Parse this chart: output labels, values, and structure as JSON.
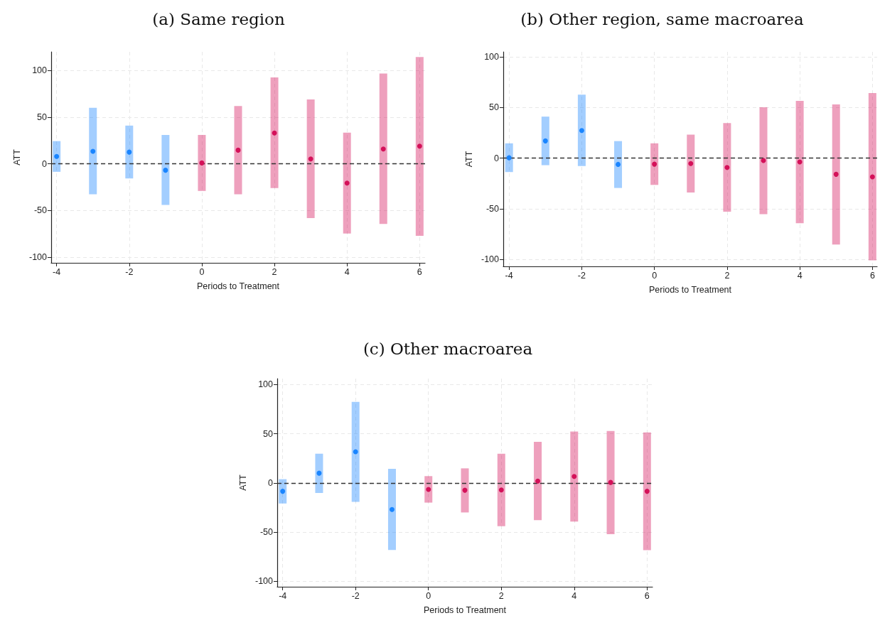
{
  "chart_data": [
    {
      "type": "scatter",
      "title": "(a) Same region",
      "xlabel": "Periods to Treatment",
      "ylabel": "ATT",
      "xlim": [
        -4.15,
        6.15
      ],
      "xticks": [
        -4,
        -2,
        0,
        2,
        4,
        6
      ],
      "ylim": [
        -106,
        120
      ],
      "yticks": [
        -100,
        -50,
        0,
        50,
        100
      ],
      "grid": true,
      "marker": "circle",
      "ref_lines": [
        {
          "axis": "y",
          "value": 0,
          "color": "#333333",
          "line_style": "dashed"
        }
      ],
      "series": [
        {
          "color": "#1a85ff",
          "x": [
            -4,
            -3,
            -2,
            -1
          ],
          "values": [
            8,
            13.5,
            12.6,
            -6.8
          ],
          "errors": [
            [
              -8.5,
              24.4
            ],
            [
              -32.6,
              60
            ],
            [
              -15.6,
              41
            ],
            [
              -44,
              31
            ]
          ]
        },
        {
          "color": "#d41159",
          "x": [
            0,
            1,
            2,
            3,
            4,
            5,
            6
          ],
          "values": [
            1,
            14.7,
            33,
            5.3,
            -20.6,
            16,
            19
          ],
          "errors": [
            [
              -29,
              31
            ],
            [
              -32.6,
              62
            ],
            [
              -26,
              92.6
            ],
            [
              -58,
              69
            ],
            [
              -74.7,
              33.5
            ],
            [
              -64.4,
              96.8
            ],
            [
              -77,
              114.4
            ]
          ]
        }
      ]
    },
    {
      "type": "scatter",
      "title": "(b) Other region, same macroarea",
      "xlabel": "Periods to Treatment",
      "ylabel": "ATT",
      "xlim": [
        -4.16,
        6.13
      ],
      "xticks": [
        -4,
        -2,
        0,
        2,
        4,
        6
      ],
      "ylim": [
        -107,
        105
      ],
      "yticks": [
        -100,
        -50,
        0,
        50,
        100
      ],
      "grid": true,
      "marker": "circle",
      "ref_lines": [
        {
          "axis": "y",
          "value": 0,
          "color": "#333333",
          "line_style": "dashed"
        }
      ],
      "series": [
        {
          "color": "#1a85ff",
          "x": [
            -4,
            -3,
            -2,
            -1
          ],
          "values": [
            0.3,
            17,
            27.3,
            -6.2
          ],
          "errors": [
            [
              -13.8,
              14.6
            ],
            [
              -7,
              41
            ],
            [
              -7.8,
              62.7
            ],
            [
              -29.5,
              16.8
            ]
          ]
        },
        {
          "color": "#d41159",
          "x": [
            0,
            1,
            2,
            3,
            4,
            5,
            6
          ],
          "values": [
            -6,
            -5.4,
            -9.2,
            -2.4,
            -3.8,
            -16,
            -18.6
          ],
          "errors": [
            [
              -26.5,
              14.6
            ],
            [
              -34,
              23.2
            ],
            [
              -53,
              34.6
            ],
            [
              -55.4,
              50.3
            ],
            [
              -64.3,
              56.5
            ],
            [
              -85.4,
              53
            ],
            [
              -101,
              64.3
            ]
          ]
        }
      ]
    },
    {
      "type": "scatter",
      "title": "(c) Other macroarea",
      "xlabel": "Periods to Treatment",
      "ylabel": "ATT",
      "xlim": [
        -4.15,
        6.15
      ],
      "xticks": [
        -4,
        -2,
        0,
        2,
        4,
        6
      ],
      "ylim": [
        -105.5,
        106
      ],
      "yticks": [
        -100,
        -50,
        0,
        50,
        100
      ],
      "grid": true,
      "marker": "circle",
      "ref_lines": [
        {
          "axis": "y",
          "value": 0,
          "color": "#333333",
          "line_style": "dashed"
        }
      ],
      "series": [
        {
          "color": "#1a85ff",
          "x": [
            -4,
            -3,
            -2,
            -1
          ],
          "values": [
            -8.5,
            9.9,
            31.6,
            -27
          ],
          "errors": [
            [
              -20.9,
              3.8
            ],
            [
              -10.2,
              29.7
            ],
            [
              -19.2,
              82.4
            ],
            [
              -68.1,
              14.3
            ]
          ]
        },
        {
          "color": "#d41159",
          "x": [
            0,
            1,
            2,
            3,
            4,
            5,
            6
          ],
          "values": [
            -6.6,
            -7.4,
            -7.1,
            1.9,
            6.6,
            0.5,
            -8.5
          ],
          "errors": [
            [
              -20,
              6.9
            ],
            [
              -30,
              14.8
            ],
            [
              -44,
              29.7
            ],
            [
              -37.9,
              41.8
            ],
            [
              -39.3,
              52.2
            ],
            [
              -52,
              52.7
            ],
            [
              -68.4,
              51.4
            ]
          ]
        }
      ]
    }
  ]
}
